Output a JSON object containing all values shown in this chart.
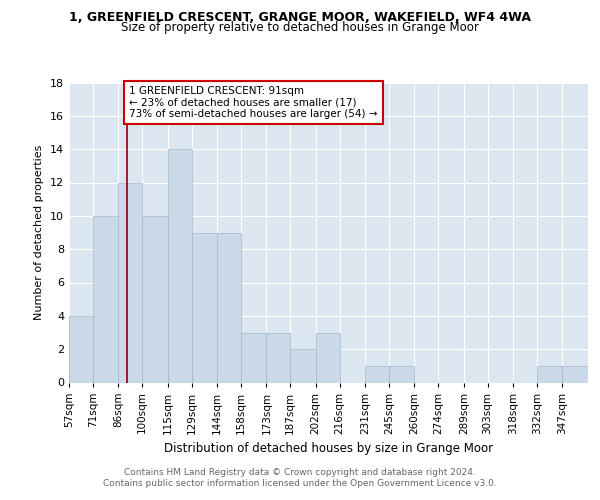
{
  "title": "1, GREENFIELD CRESCENT, GRANGE MOOR, WAKEFIELD, WF4 4WA",
  "subtitle": "Size of property relative to detached houses in Grange Moor",
  "xlabel": "Distribution of detached houses by size in Grange Moor",
  "ylabel": "Number of detached properties",
  "bin_labels": [
    "57sqm",
    "71sqm",
    "86sqm",
    "100sqm",
    "115sqm",
    "129sqm",
    "144sqm",
    "158sqm",
    "173sqm",
    "187sqm",
    "202sqm",
    "216sqm",
    "231sqm",
    "245sqm",
    "260sqm",
    "274sqm",
    "289sqm",
    "303sqm",
    "318sqm",
    "332sqm",
    "347sqm"
  ],
  "bin_edges": [
    57,
    71,
    86,
    100,
    115,
    129,
    144,
    158,
    173,
    187,
    202,
    216,
    231,
    245,
    260,
    274,
    289,
    303,
    318,
    332,
    347
  ],
  "heights": [
    4,
    10,
    12,
    10,
    14,
    9,
    9,
    3,
    3,
    2,
    3,
    0,
    1,
    1,
    0,
    0,
    0,
    0,
    0,
    1,
    1
  ],
  "bar_color": "#c9d9e8",
  "bar_edge_color": "#a0b8cc",
  "vline_x": 91,
  "vline_color": "#8b0000",
  "annotation_line1": "1 GREENFIELD CRESCENT: 91sqm",
  "annotation_line2": "← 23% of detached houses are smaller (17)",
  "annotation_line3": "73% of semi-detached houses are larger (54) →",
  "annotation_box_color": "#ffffff",
  "annotation_box_edge": "#cc0000",
  "background_color": "#dce6f0",
  "ylim": [
    0,
    18
  ],
  "yticks": [
    0,
    2,
    4,
    6,
    8,
    10,
    12,
    14,
    16,
    18
  ],
  "footer_line1": "Contains HM Land Registry data © Crown copyright and database right 2024.",
  "footer_line2": "Contains public sector information licensed under the Open Government Licence v3.0."
}
